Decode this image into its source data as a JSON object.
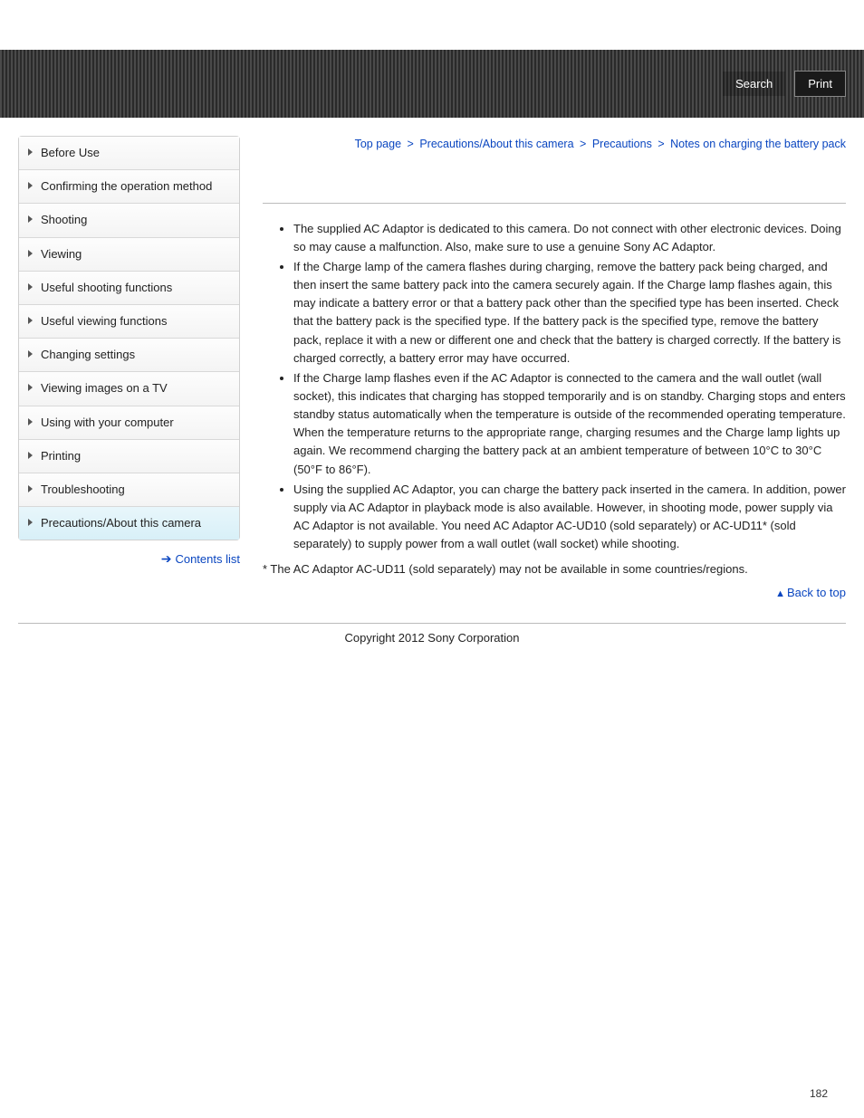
{
  "header": {
    "search_label": "Search",
    "print_label": "Print"
  },
  "sidebar": {
    "items": [
      {
        "label": "Before Use"
      },
      {
        "label": "Confirming the operation method"
      },
      {
        "label": "Shooting"
      },
      {
        "label": "Viewing"
      },
      {
        "label": "Useful shooting functions"
      },
      {
        "label": "Useful viewing functions"
      },
      {
        "label": "Changing settings"
      },
      {
        "label": "Viewing images on a TV"
      },
      {
        "label": "Using with your computer"
      },
      {
        "label": "Printing"
      },
      {
        "label": "Troubleshooting"
      },
      {
        "label": "Precautions/About this camera"
      }
    ],
    "active_index": 11,
    "contents_list_label": "Contents list"
  },
  "breadcrumb": {
    "items": [
      "Top page",
      "Precautions/About this camera",
      "Precautions",
      "Notes on charging the battery pack"
    ],
    "separator": ">"
  },
  "content": {
    "bullets": [
      "The supplied AC Adaptor is dedicated to this camera. Do not connect with other electronic devices. Doing so may cause a malfunction. Also, make sure to use a genuine Sony AC Adaptor.",
      "If the Charge lamp of the camera flashes during charging, remove the battery pack being charged, and then insert the same battery pack into the camera securely again. If the Charge lamp flashes again, this may indicate a battery error or that a battery pack other than the specified type has been inserted. Check that the battery pack is the specified type. If the battery pack is the specified type, remove the battery pack, replace it with a new or different one and check that the battery is charged correctly. If the battery is charged correctly, a battery error may have occurred.",
      "If the Charge lamp flashes even if the AC Adaptor is connected to the camera and the wall outlet (wall socket), this indicates that charging has stopped temporarily and is on standby. Charging stops and enters standby status automatically when the temperature is outside of the recommended operating temperature. When the temperature returns to the appropriate range, charging resumes and the Charge lamp lights up again. We recommend charging the battery pack at an ambient temperature of between 10°C to 30°C (50°F to 86°F).",
      "Using the supplied AC Adaptor, you can charge the battery pack inserted in the camera. In addition, power supply via AC Adaptor in playback mode is also available. However, in shooting mode, power supply via AC Adaptor is not available. You need AC Adaptor AC-UD10 (sold separately) or AC-UD11* (sold separately) to supply power from a wall outlet (wall socket) while shooting."
    ],
    "footnote": "* The AC Adaptor AC-UD11 (sold separately) may not be available in some countries/regions.",
    "back_to_top_label": "Back to top"
  },
  "footer": {
    "copyright": "Copyright 2012 Sony Corporation"
  },
  "page_number": "182"
}
